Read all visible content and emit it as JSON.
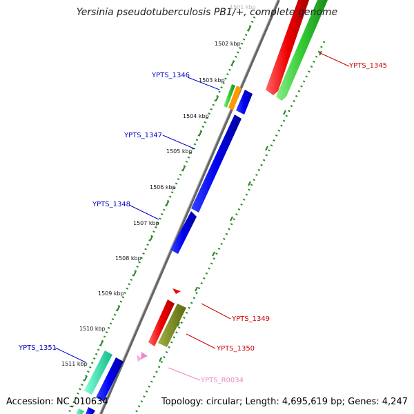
{
  "title": "Yersinia pseudotuberculosis PB1/+, complete genome",
  "footer": {
    "accession": "Accession: NC_010634",
    "summary": "Topology: circular; Length: 4,695,619 bp; Genes: 4,247"
  },
  "scale_labels": [
    "1501 kbp",
    "1502 kbp",
    "1503 kbp",
    "1504 kbp",
    "1505 kbp",
    "1506 kbp",
    "1507 kbp",
    "1508 kbp",
    "1509 kbp",
    "1510 kbp",
    "1511 kbp"
  ],
  "gene_labels": {
    "ypts_1345": {
      "text": "YPTS_1345",
      "color": "#cc0000"
    },
    "ypts_1346": {
      "text": "YPTS_1346",
      "color": "#0000cc"
    },
    "ypts_1347": {
      "text": "YPTS_1347",
      "color": "#0000cc"
    },
    "ypts_1348": {
      "text": "YPTS_1348",
      "color": "#0000cc"
    },
    "ypts_1349": {
      "text": "YPTS_1349",
      "color": "#cc0000"
    },
    "ypts_1350": {
      "text": "YPTS_1350",
      "color": "#cc0000"
    },
    "ypts_r0034": {
      "text": "YPTS_R0034",
      "color": "#e888c8"
    },
    "ypts_1351": {
      "text": "YPTS_1351",
      "color": "#0000cc"
    }
  },
  "colors": {
    "backbone": "#888888",
    "tick_green": "#2a8a2a",
    "forward_cds": "#ee0000",
    "forward_cds_alt": "#33cc33",
    "reverse_cds": "#0000ee",
    "orange_feature": "#ff9900",
    "olive_feature": "#7a8a22",
    "teal_feature": "#22ddaa",
    "rna": "#ee88cc"
  }
}
